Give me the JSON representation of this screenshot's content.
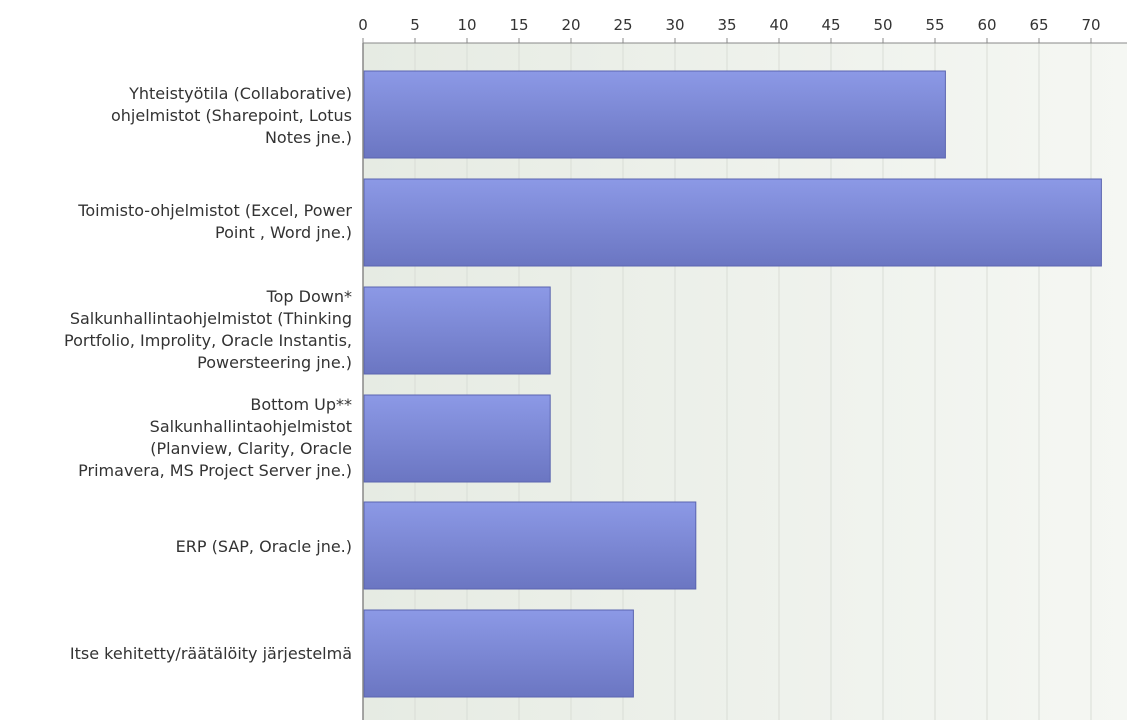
{
  "chart_data": {
    "type": "bar",
    "orientation": "horizontal",
    "title": "",
    "xlabel": "",
    "ylabel": "",
    "xlim": [
      0,
      72
    ],
    "ticks": [
      0,
      5,
      10,
      15,
      20,
      25,
      30,
      35,
      40,
      45,
      50,
      55,
      60,
      65,
      70
    ],
    "tick_labels": [
      "0",
      "5",
      "10",
      "15",
      "20",
      "25",
      "30",
      "35",
      "40",
      "45",
      "50",
      "55",
      "60",
      "65",
      "70"
    ],
    "grid": true,
    "legend": "none",
    "categories": [
      "Yhteistyötila (Collaborative)\nohjelmistot (Sharepoint, Lotus\nNotes jne.)",
      "Toimisto-ohjelmistot (Excel, Power\nPoint , Word jne.)",
      "Top Down*\nSalkunhallintaohjelmistot (Thinking\nPortfolio, Improlity, Oracle Instantis,\nPowersteering jne.)",
      "Bottom Up**\nSalkunhallintaohjelmistot\n(Planview, Clarity, Oracle\nPrimavera, MS Project Server jne.)",
      "ERP (SAP, Oracle jne.)",
      "Itse kehitetty/räätälöity järjestelmä"
    ],
    "values": [
      56,
      71,
      18,
      18,
      32,
      26
    ],
    "colors": {
      "bar_top": "#8c99e6",
      "bar_bottom": "#6b76c2",
      "bar_stroke": "#5a64b0",
      "plot_bg_left": "#e6ebe3",
      "plot_bg_right": "#f5f7f3",
      "grid": "#d9ddd6",
      "axis": "#888888",
      "text": "#333333"
    }
  }
}
